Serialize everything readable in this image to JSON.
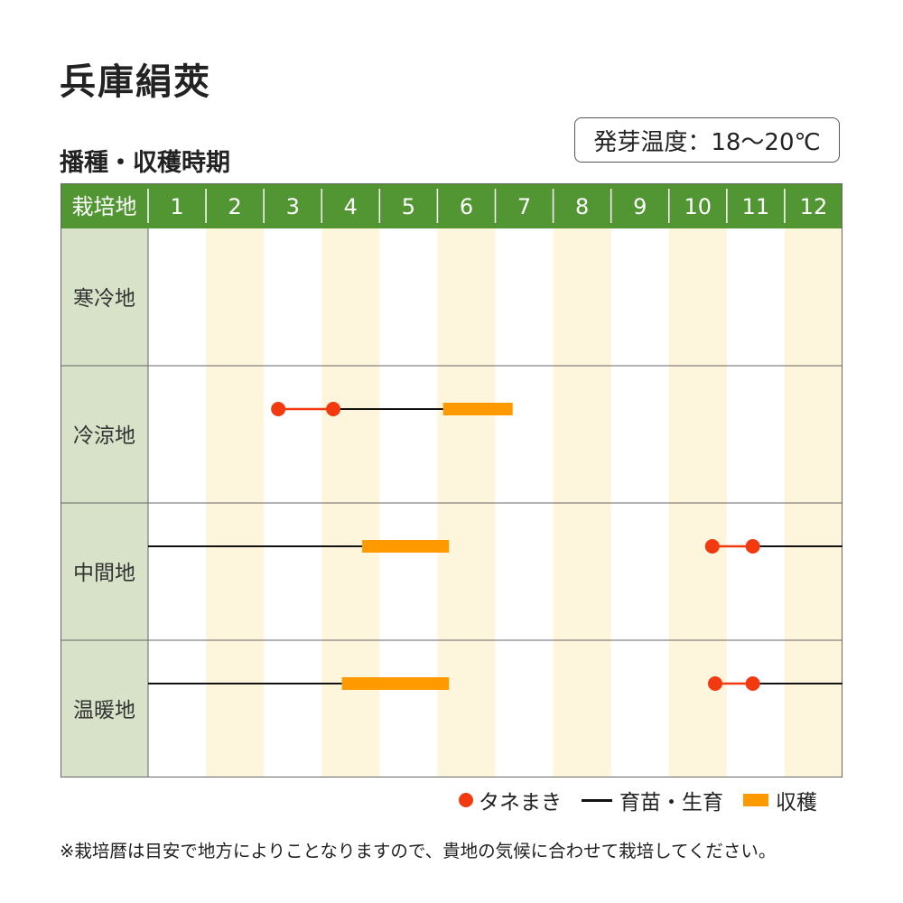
{
  "title": "兵庫絹莢",
  "subtitle": "播種・収穫時期",
  "germination_temp": "発芽温度：18〜20℃",
  "legend": {
    "sowing": "タネまき",
    "seedling": "育苗・生育",
    "harvest": "収穫"
  },
  "note": "※栽培暦は目安で地方によりことなりますので、貴地の気候に合わせて栽培してください。",
  "colors": {
    "header_green": "#519632",
    "region_cell": "#d8e2c8",
    "stripe": "#fdf5dc",
    "sowing_red": "#f2390f",
    "harvest_orange": "#fe9a00",
    "growth_line": "#111111"
  },
  "chart_data": {
    "type": "gantt",
    "header_label": "栽培地",
    "months": [
      "1",
      "2",
      "3",
      "4",
      "5",
      "6",
      "7",
      "8",
      "9",
      "10",
      "11",
      "12"
    ],
    "regions": [
      {
        "name": "寒冷地",
        "sowing": [],
        "growth": [],
        "harvest": []
      },
      {
        "name": "冷涼地",
        "sowing": [
          [
            3.25,
            4.2
          ]
        ],
        "growth": [
          [
            4.2,
            6.1
          ]
        ],
        "harvest": [
          [
            6.1,
            7.3
          ]
        ]
      },
      {
        "name": "中間地",
        "sowing": [
          [
            10.75,
            11.45
          ]
        ],
        "growth": [
          [
            1,
            4.7
          ],
          [
            11.45,
            13
          ]
        ],
        "harvest": [
          [
            4.7,
            6.2
          ]
        ]
      },
      {
        "name": "温暖地",
        "sowing": [
          [
            10.8,
            11.45
          ]
        ],
        "growth": [
          [
            1,
            4.35
          ],
          [
            11.45,
            13
          ]
        ],
        "harvest": [
          [
            4.35,
            6.2
          ]
        ]
      }
    ]
  }
}
